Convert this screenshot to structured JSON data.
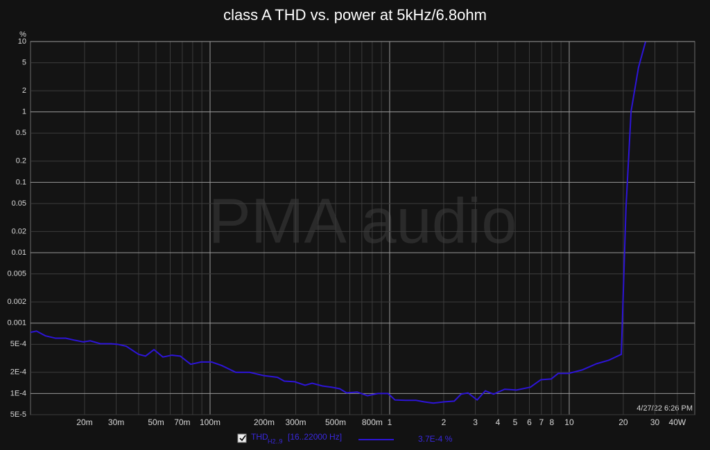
{
  "chart_data": {
    "type": "line",
    "title": "class A THD vs. power at 5kHz/6.8ohm",
    "y_unit": "%",
    "watermark": "PMA audio",
    "timestamp": "4/27/22 6:26 PM",
    "xscale": "log",
    "yscale": "log",
    "grid": true,
    "xlim": [
      0.01,
      50
    ],
    "ylim": [
      5e-05,
      10
    ],
    "xticks": [
      {
        "value": 0.02,
        "label": "20m"
      },
      {
        "value": 0.03,
        "label": "30m"
      },
      {
        "value": 0.05,
        "label": "50m"
      },
      {
        "value": 0.07,
        "label": "70m"
      },
      {
        "value": 0.1,
        "label": "100m"
      },
      {
        "value": 0.2,
        "label": "200m"
      },
      {
        "value": 0.3,
        "label": "300m"
      },
      {
        "value": 0.5,
        "label": "500m"
      },
      {
        "value": 0.8,
        "label": "800m"
      },
      1,
      2,
      3,
      4,
      5,
      6,
      7,
      8,
      10,
      20,
      30,
      {
        "value": 40,
        "label": "40W"
      }
    ],
    "xgrid": [
      0.02,
      0.03,
      0.04,
      0.05,
      0.06,
      0.07,
      0.08,
      0.09,
      0.1,
      0.2,
      0.3,
      0.4,
      0.5,
      0.6,
      0.7,
      0.8,
      0.9,
      1,
      2,
      3,
      4,
      5,
      6,
      7,
      8,
      9,
      10,
      20,
      30,
      40
    ],
    "yticks": [
      10,
      5,
      2,
      1,
      0.5,
      0.2,
      0.1,
      0.05,
      0.02,
      0.01,
      0.005,
      0.002,
      0.001,
      {
        "value": 0.0005,
        "label": "5E-4"
      },
      {
        "value": 0.0002,
        "label": "2E-4"
      },
      {
        "value": 0.0001,
        "label": "1E-4"
      },
      {
        "value": 5e-05,
        "label": "5E-5"
      }
    ],
    "x": [
      0.01,
      0.0108,
      0.0121,
      0.0138,
      0.0157,
      0.0177,
      0.0197,
      0.0215,
      0.0245,
      0.0281,
      0.0306,
      0.0341,
      0.04,
      0.0437,
      0.0487,
      0.0546,
      0.0613,
      0.0682,
      0.078,
      0.0891,
      0.102,
      0.116,
      0.139,
      0.166,
      0.198,
      0.237,
      0.259,
      0.296,
      0.338,
      0.37,
      0.422,
      0.474,
      0.527,
      0.576,
      0.659,
      0.752,
      0.86,
      0.98,
      1.07,
      1.23,
      1.4,
      1.56,
      1.75,
      2.0,
      2.29,
      2.5,
      2.73,
      3.07,
      3.41,
      3.79,
      4.37,
      5.09,
      6.08,
      6.95,
      7.94,
      8.68,
      9.9,
      11.8,
      14.2,
      16.6,
      19.5,
      20.7,
      22.1,
      24.3,
      26.6
    ],
    "series": [
      {
        "name": "THD",
        "name_subscript": "H2..9",
        "range_label": "[16..22000 Hz]",
        "legend_value": "3.7E-4 %",
        "color": "#2d14d8",
        "values": [
          0.00074,
          0.00077,
          0.00066,
          0.00061,
          0.00061,
          0.00057,
          0.00054,
          0.00056,
          0.00051,
          0.00051,
          0.0005,
          0.00047,
          0.00036,
          0.00034,
          0.00042,
          0.00033,
          0.00035,
          0.00034,
          0.00026,
          0.00028,
          0.00028,
          0.00025,
          0.0002,
          0.0002,
          0.00018,
          0.00017,
          0.00015,
          0.000147,
          0.000131,
          0.00014,
          0.000128,
          0.000123,
          0.000117,
          0.000102,
          0.000105,
          9.3e-05,
          0.0001,
          0.0001,
          8.1e-05,
          8e-05,
          8e-05,
          7.6e-05,
          7.3e-05,
          7.6e-05,
          7.8e-05,
          9.8e-05,
          0.000102,
          8.1e-05,
          0.000109,
          9.8e-05,
          0.000115,
          0.000112,
          0.000123,
          0.000157,
          0.000161,
          0.000193,
          0.000193,
          0.000216,
          0.000265,
          0.000297,
          0.00036,
          0.043,
          1.02,
          4.27,
          9.9
        ]
      }
    ]
  }
}
